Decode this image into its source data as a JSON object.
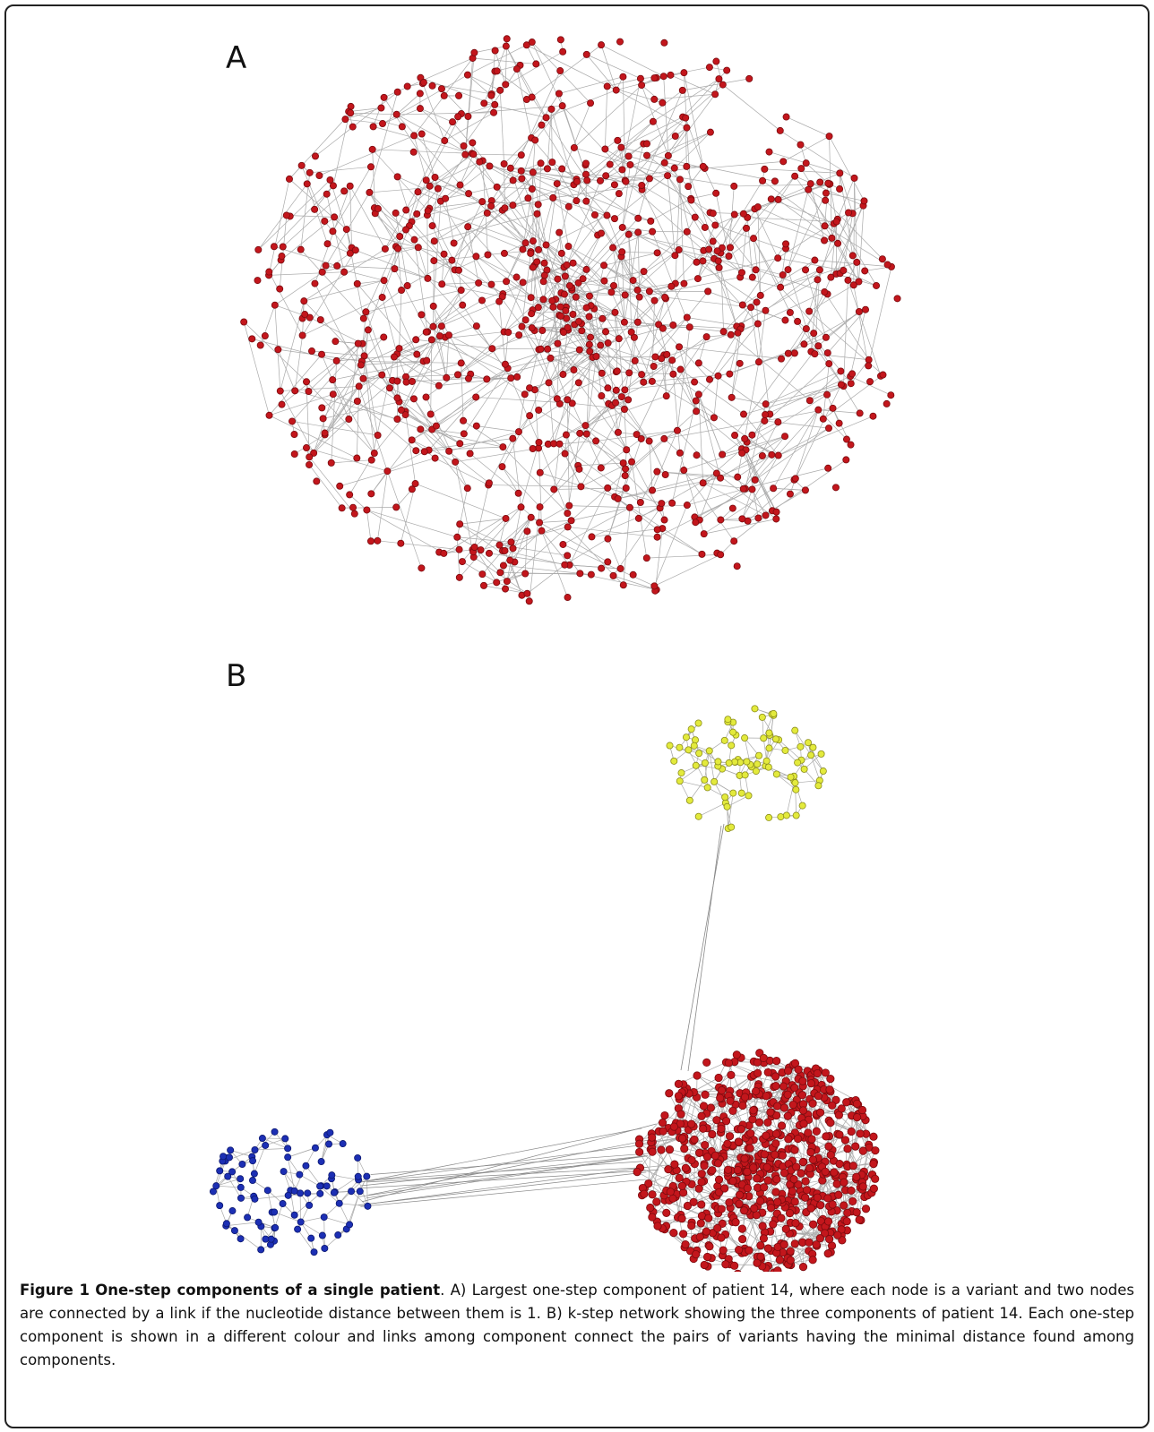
{
  "figure": {
    "panels": [
      {
        "label": "A"
      },
      {
        "label": "B"
      }
    ],
    "caption": {
      "label": "Figure 1",
      "title": "One-step components of a single patient",
      "text": ". A) Largest one-step component of patient 14, where each node is a variant and two nodes are connected by a link if the nucleotide distance between them is 1. B) k-step network showing the three components of patient 14. Each one-step component is shown in a different colour and links among component connect the pairs of variants having the minimal distance found among components."
    }
  }
}
